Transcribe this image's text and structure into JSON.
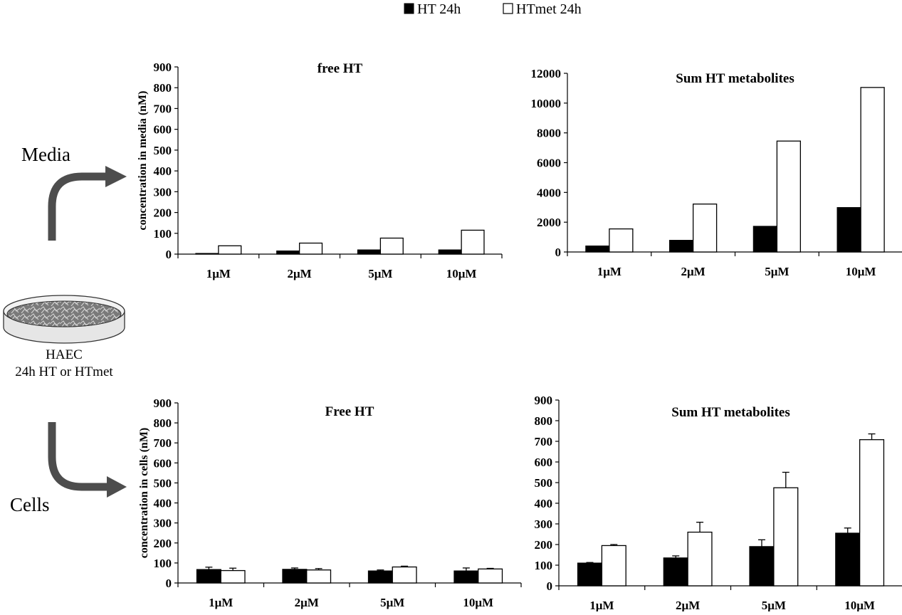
{
  "legend": {
    "items": [
      {
        "label": "HT 24h",
        "color": "#000000"
      },
      {
        "label": "HTmet 24h",
        "color": "#ffffff"
      }
    ]
  },
  "figure": {
    "media_label": "Media",
    "cells_label": "Cells",
    "dish_line1": "HAEC",
    "dish_line2": "24h HT or HTmet"
  },
  "chart_data": [
    {
      "id": "media-free",
      "type": "bar",
      "title": "free HT",
      "ylabel": "concentration in media (nM)",
      "categories": [
        "1μM",
        "2μM",
        "5μM",
        "10μM"
      ],
      "ylim": [
        0,
        900
      ],
      "yticks": [
        0,
        100,
        200,
        300,
        400,
        500,
        600,
        700,
        800,
        900
      ],
      "series": [
        {
          "name": "HT 24h",
          "values": [
            3,
            15,
            20,
            20
          ],
          "errors": [
            0,
            0,
            0,
            0
          ]
        },
        {
          "name": "HTmet 24h",
          "values": [
            40,
            53,
            77,
            115
          ],
          "errors": [
            0,
            0,
            0,
            0
          ]
        }
      ]
    },
    {
      "id": "media-sum",
      "type": "bar",
      "title": "Sum HT metabolites",
      "ylabel": "",
      "categories": [
        "1μM",
        "2μM",
        "5μM",
        "10μM"
      ],
      "ylim": [
        0,
        12000
      ],
      "yticks": [
        0,
        2000,
        4000,
        6000,
        8000,
        10000,
        12000
      ],
      "series": [
        {
          "name": "HT 24h",
          "values": [
            400,
            780,
            1720,
            2980
          ],
          "errors": [
            0,
            0,
            0,
            0
          ]
        },
        {
          "name": "HTmet 24h",
          "values": [
            1550,
            3220,
            7450,
            11050
          ],
          "errors": [
            0,
            0,
            0,
            0
          ]
        }
      ]
    },
    {
      "id": "cells-free",
      "type": "bar",
      "title": "Free HT",
      "ylabel": "concentration in cells (nM)",
      "categories": [
        "1μM",
        "2μM",
        "5μM",
        "10μM"
      ],
      "ylim": [
        0,
        900
      ],
      "yticks": [
        0,
        100,
        200,
        300,
        400,
        500,
        600,
        700,
        800,
        900
      ],
      "series": [
        {
          "name": "HT 24h",
          "values": [
            67,
            68,
            60,
            60
          ],
          "errors": [
            12,
            7,
            5,
            15
          ]
        },
        {
          "name": "HTmet 24h",
          "values": [
            62,
            65,
            80,
            70
          ],
          "errors": [
            12,
            7,
            4,
            3
          ]
        }
      ]
    },
    {
      "id": "cells-sum",
      "type": "bar",
      "title": "Sum HT metabolites",
      "ylabel": "",
      "categories": [
        "1μM",
        "2μM",
        "5μM",
        "10μM"
      ],
      "ylim": [
        0,
        900
      ],
      "yticks": [
        0,
        100,
        200,
        300,
        400,
        500,
        600,
        700,
        800,
        900
      ],
      "series": [
        {
          "name": "HT 24h",
          "values": [
            110,
            135,
            190,
            255
          ],
          "errors": [
            3,
            10,
            33,
            25
          ]
        },
        {
          "name": "HTmet 24h",
          "values": [
            195,
            260,
            475,
            708
          ],
          "errors": [
            5,
            48,
            75,
            28
          ]
        }
      ]
    }
  ]
}
